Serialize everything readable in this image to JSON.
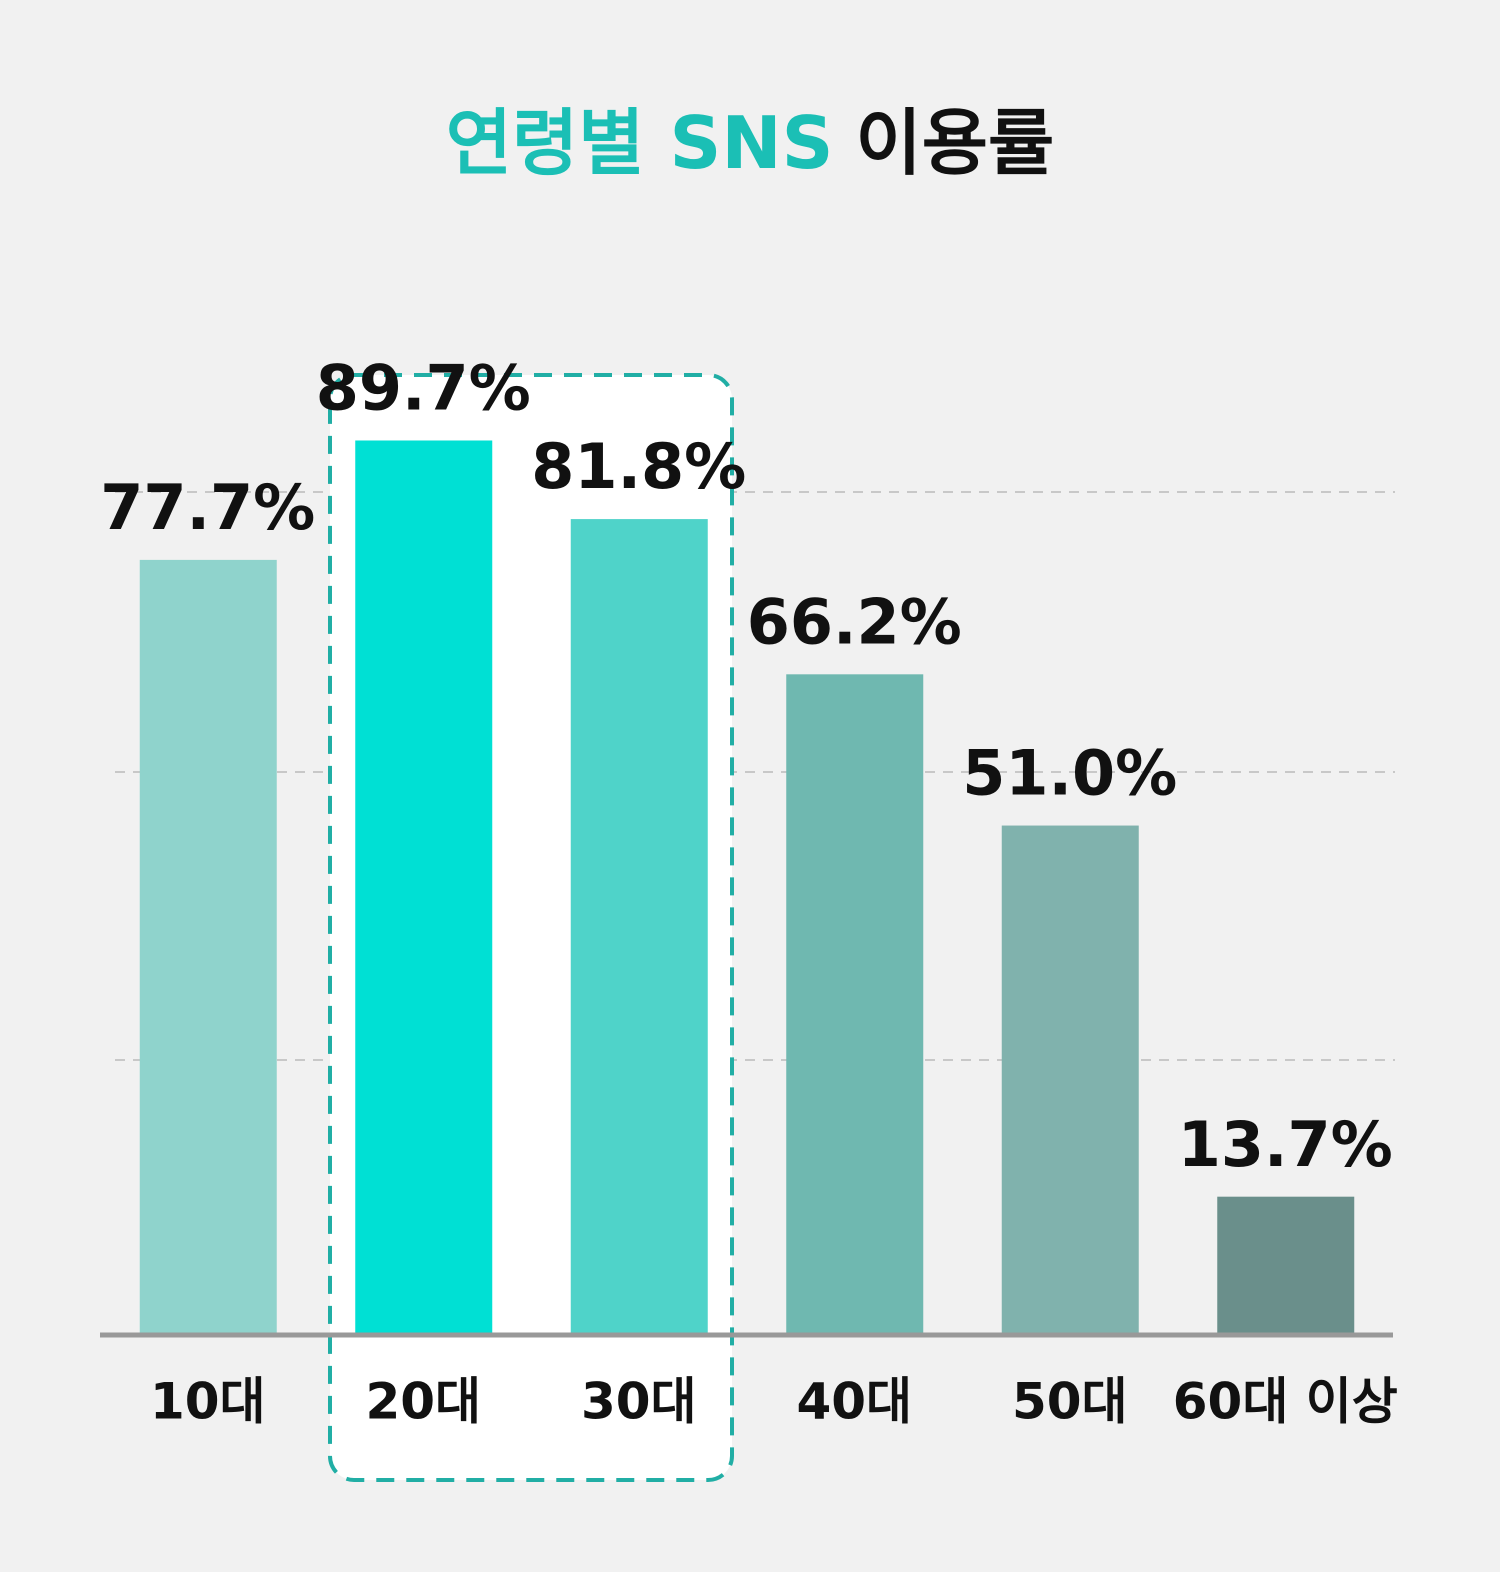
{
  "chart_data": {
    "type": "bar",
    "title_parts": [
      {
        "text": "연령별 SNS",
        "color": "#1bbfb5"
      },
      {
        "text": "이용률",
        "color": "#111111"
      }
    ],
    "categories": [
      "10대",
      "20대",
      "30대",
      "40대",
      "50대",
      "60대 이상"
    ],
    "values": [
      77.7,
      89.7,
      81.8,
      66.2,
      51.0,
      13.7
    ],
    "value_labels": [
      "77.7%",
      "89.7%",
      "81.8%",
      "66.2%",
      "51.0%",
      "13.7%"
    ],
    "colors": [
      "#8fd3cc",
      "#00e0d4",
      "#4fd3c9",
      "#6fb8b0",
      "#80b2ad",
      "#6a8f8b"
    ],
    "ylim": [
      0,
      100
    ]
  }
}
